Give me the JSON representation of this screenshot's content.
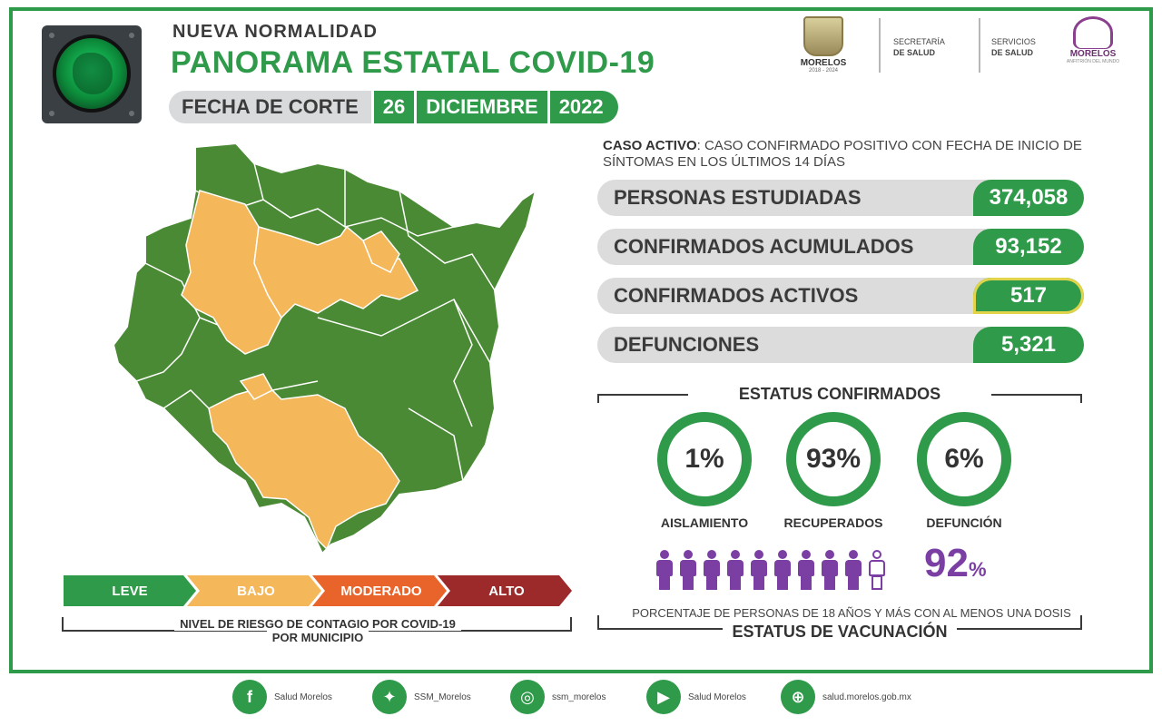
{
  "header": {
    "kicker": "NUEVA NORMALIDAD",
    "title": "PANORAMA ESTATAL COVID-19",
    "date_label": "FECHA DE CORTE",
    "date_day": "26",
    "date_month": "DICIEMBRE",
    "date_year": "2022"
  },
  "logos": {
    "state_name": "MORELOS",
    "state_years": "2018 - 2024",
    "secretaria_line1": "SECRETARÍA",
    "secretaria_line2": "DE SALUD",
    "servicios_line1": "SERVICIOS",
    "servicios_line2": "DE SALUD",
    "flower_name": "MORELOS",
    "flower_sub": "ANFITRIÓN DEL MUNDO"
  },
  "definition": {
    "term": "CASO ACTIVO",
    "text": ": CASO CONFIRMADO POSITIVO CON FECHA DE INICIO DE SÍNTOMAS EN LOS ÚLTIMOS 14 DÍAS"
  },
  "stats": [
    {
      "label": "PERSONAS ESTUDIADAS",
      "value": "374,058"
    },
    {
      "label": "CONFIRMADOS ACUMULADOS",
      "value": "93,152"
    },
    {
      "label": "CONFIRMADOS ACTIVOS",
      "value": "517"
    },
    {
      "label": "DEFUNCIONES",
      "value": "5,321"
    }
  ],
  "status": {
    "title": "ESTATUS CONFIRMADOS",
    "items": [
      {
        "pct": "1%",
        "label": "AISLAMIENTO"
      },
      {
        "pct": "93%",
        "label": "RECUPERADOS"
      },
      {
        "pct": "6%",
        "label": "DEFUNCIÓN"
      }
    ]
  },
  "vaccination": {
    "pct_number": "92",
    "pct_sign": "%",
    "people_filled": 9,
    "people_total": 10,
    "caption": "PORCENTAJE DE PERSONAS DE 18 AÑOS Y MÁS CON AL MENOS UNA DOSIS",
    "title": "ESTATUS DE VACUNACIÓN"
  },
  "legend": {
    "levels": [
      {
        "label": "LEVE",
        "color": "#2f9a4a"
      },
      {
        "label": "BAJO",
        "color": "#f4b75a"
      },
      {
        "label": "MODERADO",
        "color": "#e8642a"
      },
      {
        "label": "ALTO",
        "color": "#9c2a2a"
      }
    ],
    "caption_a": "NIVEL DE RIESGO DE CONTAGIO POR ",
    "caption_b": "COVID-19",
    "caption_c": "POR MUNICIPIO"
  },
  "map_colors": {
    "green": "#4a8a34",
    "orange": "#f4b75a",
    "border": "#ffffff"
  },
  "socials": [
    {
      "icon": "facebook-icon",
      "glyph": "f",
      "text": "Salud Morelos"
    },
    {
      "icon": "twitter-icon",
      "glyph": "✦",
      "text": "SSM_Morelos"
    },
    {
      "icon": "instagram-icon",
      "glyph": "◎",
      "text": "ssm_morelos"
    },
    {
      "icon": "youtube-icon",
      "glyph": "▶",
      "text": "Salud Morelos"
    },
    {
      "icon": "web-icon",
      "glyph": "⊕",
      "text": "salud.morelos.gob.mx"
    }
  ]
}
